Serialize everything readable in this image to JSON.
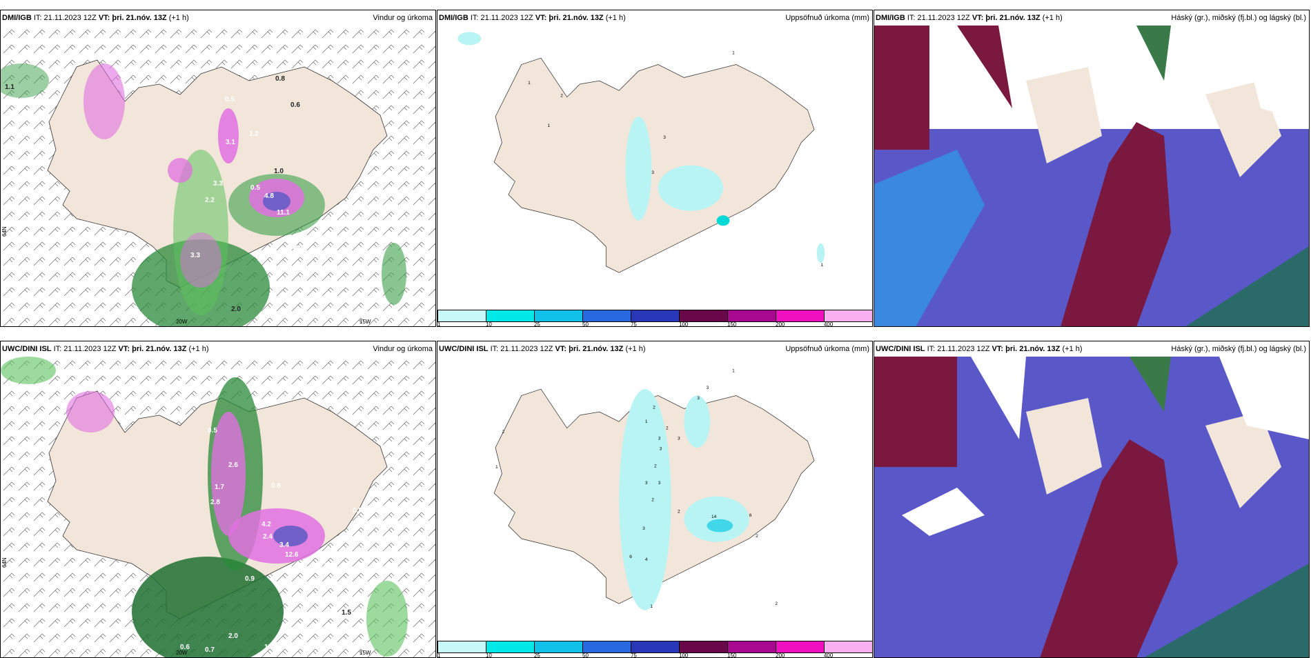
{
  "panels": [
    {
      "source": "DMI/IGB",
      "it": "IT: 21.11.2023 12Z",
      "vt": "VT: þri. 21.nóv. 13Z",
      "lead": "(+1 h)",
      "title": "Vindur og úrkoma"
    },
    {
      "source": "DMI/IGB",
      "it": "IT: 21.11.2023 12Z",
      "vt": "VT: þri. 21.nóv. 13Z",
      "lead": "(+1 h)",
      "title": "Uppsöfnuð úrkoma (mm)"
    },
    {
      "source": "DMI/IGB",
      "it": "IT: 21.11.2023 12Z",
      "vt": "VT: þri. 21.nóv. 13Z",
      "lead": "(+1 h)",
      "title": "Háský (gr.), miðský (fj.bl.) og lágský (bl.)"
    },
    {
      "source": "UWC/DINI ISL",
      "it": "IT: 21.11.2023 12Z",
      "vt": "VT: þri. 21.nóv. 13Z",
      "lead": "(+1 h)",
      "title": "Vindur og úrkoma"
    },
    {
      "source": "UWC/DINI ISL",
      "it": "IT: 21.11.2023 12Z",
      "vt": "VT: þri. 21.nóv. 13Z",
      "lead": "(+1 h)",
      "title": "Uppsöfnuð úrkoma (mm)"
    },
    {
      "source": "UWC/DINI ISL",
      "it": "IT: 21.11.2023 12Z",
      "vt": "VT: þri. 21.nóv. 13Z",
      "lead": "(+1 h)",
      "title": "Háský (gr.), miðský (fj.bl.) og lágský (bl.)"
    }
  ],
  "axis": {
    "lon20": "20W",
    "lon15": "15W",
    "lat66": "66N",
    "lat64": "64N",
    "lat65": "65N"
  },
  "colorbar": {
    "ticks": [
      "1",
      "10",
      "25",
      "50",
      "75",
      "100",
      "150",
      "200",
      "400"
    ],
    "colors": [
      "#c8f8f8",
      "#00e8e8",
      "#10c0e8",
      "#2868e0",
      "#2838b8",
      "#680848",
      "#a80890",
      "#f010c0",
      "#f8b0f0"
    ]
  },
  "wind_labels_dmi": [
    "1.1",
    "0.8",
    "0.6",
    "0.5",
    "1.2",
    "3.1",
    "1.0",
    "3.3",
    "2.2",
    "0.5",
    "4.8",
    "11.1",
    "2.4",
    "2.0",
    "3.3",
    "2.0"
  ],
  "wind_labels_uwc": [
    "0.6",
    "0.7",
    "2.6",
    "0.6",
    "0.5",
    "2.6",
    "1.7",
    "2.8",
    "4.2",
    "2.4",
    "3.4",
    "12.6",
    "2.3",
    "0.6",
    "0.8",
    "0.9",
    "2.0",
    "1.0",
    "0.7",
    "0.6",
    "1.5"
  ],
  "precip_labels_dmi": [
    "1",
    "1",
    "2",
    "1",
    "3",
    "3",
    "1"
  ],
  "precip_labels_uwc": [
    "1",
    "3",
    "3",
    "2",
    "2",
    "1",
    "2",
    "3",
    "3",
    "3",
    "1",
    "2",
    "3",
    "3",
    "2",
    "14",
    "6",
    "2",
    "3",
    "6",
    "4",
    "2",
    "1",
    "2"
  ]
}
